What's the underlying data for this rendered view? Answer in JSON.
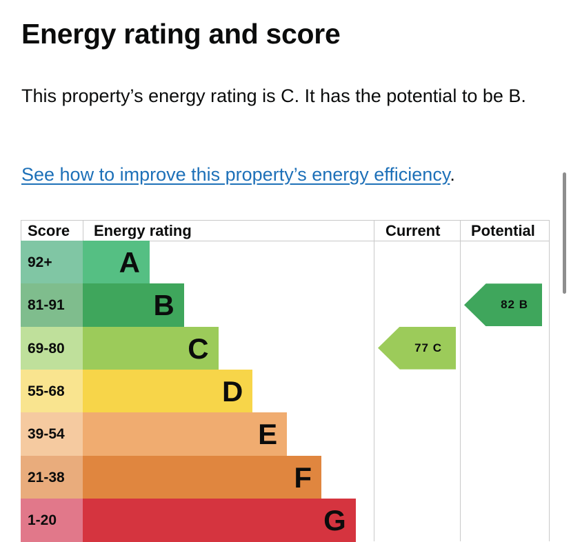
{
  "title": "Energy rating and score",
  "intro": "This property’s energy rating is C. It has the potential to be B.",
  "link": {
    "text": "See how to improve this property’s energy efficiency",
    "suffix": "."
  },
  "chart_data": {
    "type": "bar",
    "headers": {
      "score": "Score",
      "rating": "Energy rating",
      "current": "Current",
      "potential": "Potential"
    },
    "bands": [
      {
        "score": "92+",
        "letter": "A",
        "color": "#55bf83",
        "score_color": "#80c6a4"
      },
      {
        "score": "81-91",
        "letter": "B",
        "color": "#3fa65c",
        "score_color": "#7fbd8d"
      },
      {
        "score": "69-80",
        "letter": "C",
        "color": "#9ccb5a",
        "score_color": "#bfe09b"
      },
      {
        "score": "55-68",
        "letter": "D",
        "color": "#f7d549",
        "score_color": "#f9e48f"
      },
      {
        "score": "39-54",
        "letter": "E",
        "color": "#f0ac70",
        "score_color": "#f5caa0"
      },
      {
        "score": "21-38",
        "letter": "F",
        "color": "#e0863f",
        "score_color": "#e9ac7c"
      },
      {
        "score": "1-20",
        "letter": "G",
        "color": "#d5343f",
        "score_color": "#e1788a"
      }
    ],
    "current": {
      "score": 77,
      "letter": "C",
      "label": "77 C",
      "band_index": 2
    },
    "potential": {
      "score": 82,
      "letter": "B",
      "label": "82 B",
      "band_index": 1
    }
  }
}
